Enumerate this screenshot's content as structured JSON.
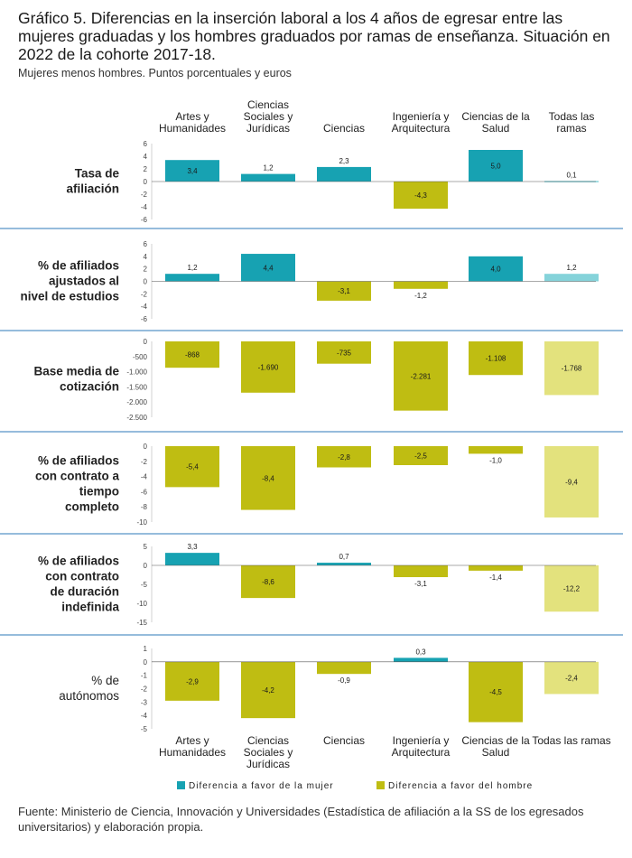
{
  "title": "Gráfico 5. Diferencias en la inserción laboral a los 4 años de egresar entre las mujeres graduadas y los hombres graduados por ramas de enseñanza. Situación en 2022 de la cohorte 2017-18.",
  "subtitle": "Mujeres menos hombres. Puntos porcentuales y euros",
  "source": "Fuente: Ministerio de Ciencia, Innovación y Universidades (Estadística de afiliación a la SS de los egresados universitarios) y elaboración propia.",
  "colors": {
    "women": "#17a2b2",
    "men": "#bfbd12",
    "women_total": "#85d3da",
    "men_total": "#e3e27d",
    "separator": "#2e78b8"
  },
  "chart_data": {
    "type": "bar",
    "categories": [
      "Artes y Humanidades",
      "Ciencias Sociales y Jurídicas",
      "Ciencias",
      "Ingeniería y Arquitectura",
      "Ciencias de la Salud",
      "Todas las ramas"
    ],
    "legend": [
      "Diferencia a favor de la mujer",
      "Diferencia a favor del hombre"
    ],
    "panels": [
      {
        "label": "Tasa de afiliación",
        "values": [
          3.4,
          1.2,
          2.3,
          -4.3,
          5.0,
          0.1
        ],
        "labels": [
          "3,4",
          "1,2",
          "2,3",
          "-4,3",
          "5,0",
          "0,1"
        ],
        "ylim": [
          -6,
          6
        ],
        "ticks": [
          6,
          4,
          2,
          0,
          -2,
          -4,
          -6
        ],
        "tick_labels": [
          "6",
          "4",
          "2",
          "0",
          "-2",
          "-4",
          "-6"
        ]
      },
      {
        "label": "% de afiliados ajustados al nivel de estudios",
        "values": [
          1.2,
          4.4,
          -3.1,
          -1.2,
          4.0,
          1.2
        ],
        "labels": [
          "1,2",
          "4,4",
          "-3,1",
          "-1,2",
          "4,0",
          "1,2"
        ],
        "ylim": [
          -6,
          6
        ],
        "ticks": [
          6,
          4,
          2,
          0,
          -2,
          -4,
          -6
        ],
        "tick_labels": [
          "6",
          "4",
          "2",
          "0",
          "-2",
          "-4",
          "-6"
        ]
      },
      {
        "label": "Base media de cotización",
        "values": [
          -868,
          -1690,
          -735,
          -2281,
          -1108,
          -1768
        ],
        "labels": [
          "-868",
          "-1.690",
          "-735",
          "-2.281",
          "-1.108",
          "-1.768"
        ],
        "ylim": [
          -2500,
          0
        ],
        "ticks": [
          0,
          -500,
          -1000,
          -1500,
          -2000,
          -2500
        ],
        "tick_labels": [
          "0",
          "-500",
          "-1.000",
          "-1.500",
          "-2.000",
          "-2.500"
        ]
      },
      {
        "label": "% de afiliados con contrato a tiempo completo",
        "values": [
          -5.4,
          -8.4,
          -2.8,
          -2.5,
          -1.0,
          -9.4
        ],
        "labels": [
          "-5,4",
          "-8,4",
          "-2,8",
          "-2,5",
          "-1,0",
          "-9,4"
        ],
        "ylim": [
          -10,
          0
        ],
        "ticks": [
          0,
          -2,
          -4,
          -6,
          -8,
          -10
        ],
        "tick_labels": [
          "0",
          "-2",
          "-4",
          "-6",
          "-8",
          "-10"
        ]
      },
      {
        "label": "% de afiliados con contrato de duración indefinida",
        "values": [
          3.3,
          -8.6,
          0.7,
          -3.1,
          -1.4,
          -12.2
        ],
        "labels": [
          "3,3",
          "-8,6",
          "0,7",
          "-3,1",
          "-1,4",
          "-12,2"
        ],
        "ylim": [
          -15,
          5
        ],
        "ticks": [
          5,
          0,
          -5,
          -10,
          -15
        ],
        "tick_labels": [
          "5",
          "0",
          "-5",
          "-10",
          "-15"
        ]
      },
      {
        "label": "% de autónomos",
        "values": [
          -2.9,
          -4.2,
          -0.9,
          0.3,
          -4.5,
          -2.4
        ],
        "labels": [
          "-2,9",
          "-4,2",
          "-0,9",
          "0,3",
          "-4,5",
          "-2,4"
        ],
        "ylim": [
          -5,
          1
        ],
        "ticks": [
          1,
          0,
          -1,
          -2,
          -3,
          -4,
          -5
        ],
        "tick_labels": [
          "1",
          "0",
          "-1",
          "-2",
          "-3",
          "-4",
          "-5"
        ]
      }
    ]
  }
}
